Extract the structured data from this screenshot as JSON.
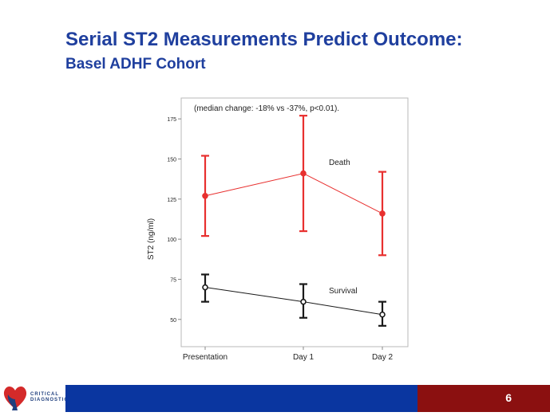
{
  "slide": {
    "title": "Serial ST2 Measurements Predict Outcome:",
    "subtitle": "Basel ADHF Cohort",
    "page_number": "6"
  },
  "logo": {
    "line1": "CRITICAL",
    "line2": "DIAGNOSTICS",
    "colors": {
      "red": "#d42a2a",
      "blue": "#1f3f7e"
    }
  },
  "colors": {
    "title": "#1f3f9e",
    "death": "#e8302f",
    "survival": "#1a1a1a",
    "footer_blue": "#0a36a0",
    "footer_red": "#8b1010"
  },
  "chart_data": {
    "type": "line",
    "annotation": "(median change: -18% vs -37%, p<0.01).",
    "ylabel": "ST2 (ng/ml)",
    "xlabel": "",
    "categories": [
      "Presentation",
      "Day 1",
      "Day 2"
    ],
    "yticks": [
      50,
      75,
      100,
      125,
      150,
      175
    ],
    "ylim": [
      33,
      188
    ],
    "series": [
      {
        "name": "Death",
        "color": "#e8302f",
        "values": [
          127,
          141,
          116
        ],
        "lower": [
          102,
          105,
          90
        ],
        "upper": [
          152,
          177,
          142
        ]
      },
      {
        "name": "Survival",
        "color": "#1a1a1a",
        "values": [
          70,
          61,
          53
        ],
        "lower": [
          61,
          51,
          46
        ],
        "upper": [
          78,
          72,
          61
        ]
      }
    ]
  }
}
